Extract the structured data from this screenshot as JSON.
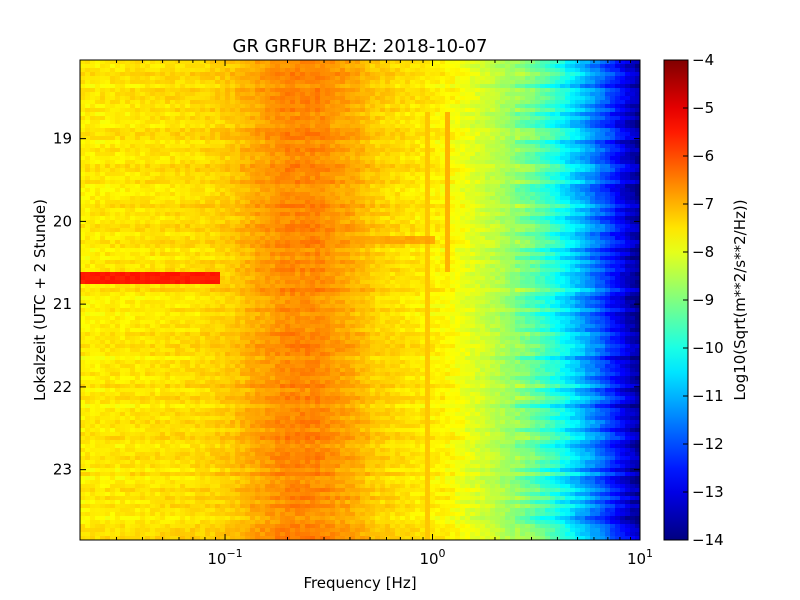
{
  "chart_data": {
    "type": "heatmap",
    "title": "GR GRFUR BHZ: 2018-10-07",
    "xlabel": "Frequency [Hz]",
    "ylabel": "Lokalzeit (UTC + 2 Stunde)",
    "x_scale": "log",
    "xlim": [
      0.02,
      10
    ],
    "ylim": [
      23.85,
      18.05
    ],
    "x_ticks": [
      {
        "value": 0.1,
        "base": "10",
        "exp": "−1"
      },
      {
        "value": 1,
        "base": "10",
        "exp": "0"
      },
      {
        "value": 10,
        "base": "10",
        "exp": "1"
      }
    ],
    "y_ticks": [
      {
        "value": 19,
        "label": "19"
      },
      {
        "value": 20,
        "label": "20"
      },
      {
        "value": 21,
        "label": "21"
      },
      {
        "value": 22,
        "label": "22"
      },
      {
        "value": 23,
        "label": "23"
      }
    ],
    "colorbar": {
      "label": "Log10(Sqrt(m**2/s**2/Hz))",
      "colormap": "jet",
      "range": [
        -14,
        -4
      ],
      "ticks": [
        {
          "value": -4,
          "label": "−4"
        },
        {
          "value": -5,
          "label": "−5"
        },
        {
          "value": -6,
          "label": "−6"
        },
        {
          "value": -7,
          "label": "−7"
        },
        {
          "value": -8,
          "label": "−8"
        },
        {
          "value": -9,
          "label": "−9"
        },
        {
          "value": -10,
          "label": "−10"
        },
        {
          "value": -11,
          "label": "−11"
        },
        {
          "value": -12,
          "label": "−12"
        },
        {
          "value": -13,
          "label": "−13"
        },
        {
          "value": -14,
          "label": "−14"
        }
      ]
    },
    "spectrum_profile": [
      {
        "freq": 0.02,
        "value": -7.6
      },
      {
        "freq": 0.04,
        "value": -7.5
      },
      {
        "freq": 0.08,
        "value": -7.4
      },
      {
        "freq": 0.11,
        "value": -7.2
      },
      {
        "freq": 0.14,
        "value": -6.9
      },
      {
        "freq": 0.2,
        "value": -6.6
      },
      {
        "freq": 0.28,
        "value": -6.6
      },
      {
        "freq": 0.4,
        "value": -6.9
      },
      {
        "freq": 0.55,
        "value": -7.3
      },
      {
        "freq": 0.8,
        "value": -7.5
      },
      {
        "freq": 1.2,
        "value": -7.7
      },
      {
        "freq": 2.0,
        "value": -8.4
      },
      {
        "freq": 3.0,
        "value": -9.2
      },
      {
        "freq": 4.0,
        "value": -10.0
      },
      {
        "freq": 5.0,
        "value": -10.8
      },
      {
        "freq": 6.5,
        "value": -11.8
      },
      {
        "freq": 8.0,
        "value": -12.8
      },
      {
        "freq": 10.0,
        "value": -13.8
      }
    ],
    "features": [
      {
        "kind": "band",
        "freq_range": [
          0.02,
          0.095
        ],
        "time_range": [
          20.6,
          20.75
        ],
        "value": -5.5
      },
      {
        "kind": "band",
        "freq_range": [
          0.35,
          1.0
        ],
        "time_range": [
          20.17,
          20.25
        ],
        "value": -6.9
      },
      {
        "kind": "line",
        "freq": 0.95,
        "time_range": [
          18.7,
          23.85
        ],
        "value": -7.2
      },
      {
        "kind": "line",
        "freq": 1.18,
        "time_range": [
          18.7,
          20.6
        ],
        "value": -7.0
      }
    ]
  }
}
